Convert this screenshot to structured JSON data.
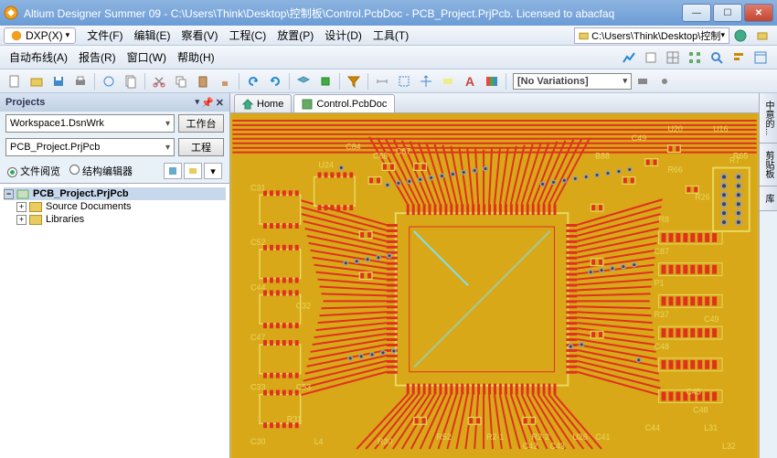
{
  "titlebar": {
    "title": "Altium Designer Summer 09 - C:\\Users\\Think\\Desktop\\控制板\\Control.PcbDoc - PCB_Project.PrjPcb. Licensed to abacfaq",
    "accent": "#6b9cd6"
  },
  "menu": {
    "dxp": "DXP(X)",
    "items": [
      "文件(F)",
      "编辑(E)",
      "察看(V)",
      "工程(C)",
      "放置(P)",
      "设计(D)",
      "工具(T)"
    ],
    "items2": [
      "自动布线(A)",
      "报告(R)",
      "窗口(W)",
      "帮助(H)"
    ],
    "address": "C:\\Users\\Think\\Desktop\\控制板"
  },
  "toolbar": {
    "variations": "[No Variations]"
  },
  "panel": {
    "title": "Projects",
    "workspace": "Workspace1.DsnWrk",
    "btn_workspace": "工作台",
    "project": "PCB_Project.PrjPcb",
    "btn_project": "工程",
    "radio1": "文件阅览",
    "radio2": "结构编辑器",
    "tree": {
      "root": "PCB_Project.PrjPcb",
      "c1": "Source Documents",
      "c2": "Libraries"
    }
  },
  "tabs": {
    "home": "Home",
    "doc": "Control.PcbDoc"
  },
  "side": {
    "t1": "中意的...",
    "t2": "剪贴板",
    "t3": "库"
  },
  "pcb": {
    "bg": "#d8a818",
    "copper": "#e03020",
    "silk": "#e8d860",
    "pad": "#a0a0a0",
    "drill": "#404040",
    "overlay": "#80e0f0",
    "refs": [
      "C84",
      "C88",
      "C87",
      "U24",
      "C31",
      "C52",
      "C44",
      "C32",
      "C47",
      "C33",
      "C53",
      "R31",
      "C30",
      "L4",
      "R30",
      "B88",
      "C49",
      "U20",
      "U16",
      "R65",
      "R66",
      "R26",
      "R7",
      "R8",
      "C87",
      "P1",
      "R37",
      "C48",
      "C49",
      "R52",
      "R2-1",
      "R2-2",
      "U26",
      "C41",
      "C42",
      "C43",
      "C44",
      "C45",
      "C48",
      "L31",
      "L32",
      "R51"
    ]
  }
}
